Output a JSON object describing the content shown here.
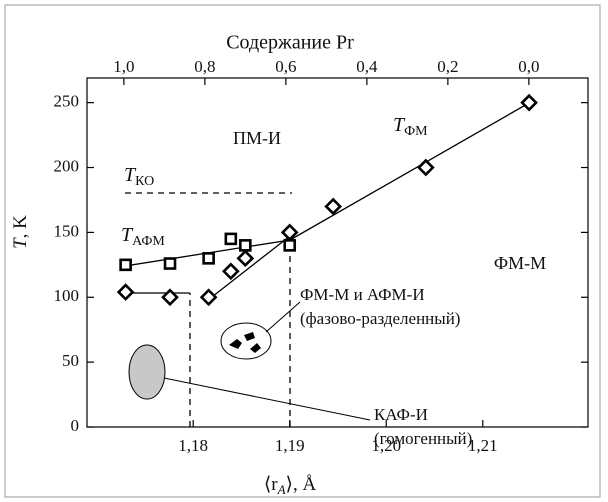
{
  "chart_data": {
    "type": "scatter",
    "title": "Содержание Pr",
    "x_label": {
      "open": "⟨r",
      "sub": "A",
      "close": "⟩, Å"
    },
    "y_label": {
      "symbol": "T",
      "unit": ", K"
    },
    "xlim": [
      1.169,
      1.2209
    ],
    "xticks": [
      {
        "value": 1.18,
        "label": "1,18"
      },
      {
        "value": 1.19,
        "label": "1,19"
      },
      {
        "value": 1.2,
        "label": "1,20"
      },
      {
        "value": 1.21,
        "label": "1,21"
      }
    ],
    "x2lim": [
      1.091,
      -0.146
    ],
    "x2ticks": [
      {
        "value": 1,
        "label": "1,0"
      },
      {
        "value": 0.8,
        "label": "0,8"
      },
      {
        "value": 0.6,
        "label": "0,6"
      },
      {
        "value": 0.4,
        "label": "0,4"
      },
      {
        "value": 0.2,
        "label": "0,2"
      },
      {
        "value": 0,
        "label": "0,0"
      }
    ],
    "ylim": [
      0,
      269
    ],
    "yticks": [
      0,
      50,
      100,
      150,
      200,
      250
    ],
    "series": [
      {
        "marker": "square",
        "color": "#000000",
        "x": [
          1.173,
          1.1776,
          1.1816,
          1.1839,
          1.1854,
          1.19
        ],
        "values": [
          125,
          126,
          130,
          145,
          140,
          140
        ]
      },
      {
        "marker": "diamond",
        "color": "#000000",
        "x": [
          1.173,
          1.1776,
          1.1816,
          1.1839,
          1.1854,
          1.19,
          1.1945,
          1.2041,
          1.2148
        ],
        "values": [
          104,
          100,
          100,
          120,
          130,
          150,
          170,
          200,
          250
        ]
      }
    ],
    "annotations": {
      "pm_i": "ПМ-И",
      "t_fm": {
        "symbol": "T",
        "sub": "ФМ"
      },
      "t_ko": {
        "symbol": "T",
        "sub": "КО"
      },
      "t_afm": {
        "symbol": "T",
        "sub": "АФМ"
      },
      "fm_m": "ФМ-М",
      "mixed": [
        "ФМ-М и АФМ-И",
        "(фазово-разделенный)"
      ],
      "caf": [
        "КАФ-И",
        "(гомогенный)"
      ]
    }
  }
}
